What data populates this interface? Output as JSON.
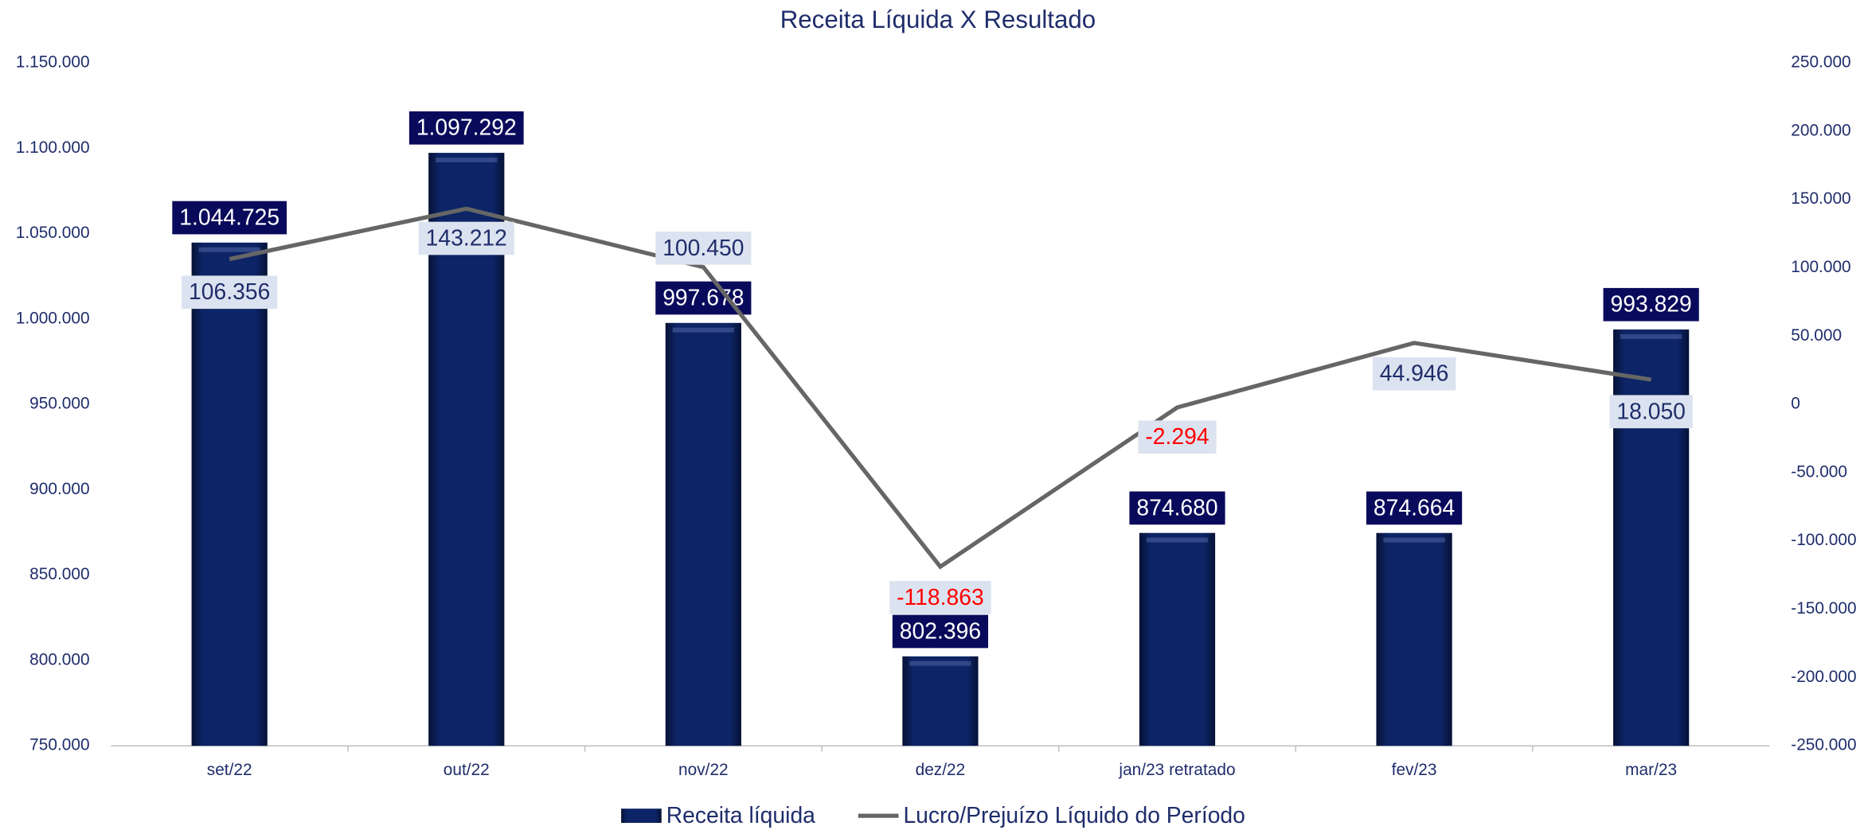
{
  "chart_data": {
    "type": "bar",
    "title": "Receita Líquida X Resultado",
    "categories": [
      "set/22",
      "out/22",
      "nov/22",
      "dez/22",
      "jan/23 retratado",
      "fev/23",
      "mar/23"
    ],
    "series": [
      {
        "name": "Receita líquida",
        "type": "bar",
        "color": "#0d2466",
        "values": [
          1044725,
          1097292,
          997678,
          802396,
          874680,
          874664,
          993829
        ],
        "value_labels": [
          "1.044.725",
          "1.097.292",
          "997.678",
          "802.396",
          "874.680",
          "874.664",
          "993.829"
        ]
      },
      {
        "name": "Lucro/Prejuízo Líquido do Período",
        "type": "line",
        "axis": "y2",
        "color": "#666666",
        "values": [
          106356,
          143212,
          100450,
          -118863,
          -2294,
          44946,
          18050
        ],
        "value_labels": [
          "106.356",
          "143.212",
          "100.450",
          "-118.863",
          "-2.294",
          "44.946",
          "18.050"
        ]
      }
    ],
    "ylim": [
      750000,
      1150000
    ],
    "yticks": [
      {
        "value": 750000,
        "label": "750.000"
      },
      {
        "value": 800000,
        "label": "800.000"
      },
      {
        "value": 850000,
        "label": "850.000"
      },
      {
        "value": 900000,
        "label": "900.000"
      },
      {
        "value": 950000,
        "label": "950.000"
      },
      {
        "value": 1000000,
        "label": "1.000.000"
      },
      {
        "value": 1050000,
        "label": "1.050.000"
      },
      {
        "value": 1100000,
        "label": "1.100.000"
      },
      {
        "value": 1150000,
        "label": "1.150.000"
      }
    ],
    "y2lim": [
      -250000,
      250000
    ],
    "y2ticks": [
      {
        "value": -250000,
        "label": "-250.000"
      },
      {
        "value": -200000,
        "label": "-200.000"
      },
      {
        "value": -150000,
        "label": "-150.000"
      },
      {
        "value": -100000,
        "label": "-100.000"
      },
      {
        "value": -50000,
        "label": "-50.000"
      },
      0,
      {
        "value": 50000,
        "label": "50.000"
      },
      {
        "value": 100000,
        "label": "100.000"
      },
      {
        "value": 150000,
        "label": "150.000"
      },
      {
        "value": 200000,
        "label": "200.000"
      },
      {
        "value": 250000,
        "label": "250.000"
      }
    ],
    "legend": "bottom",
    "negative_color": "#ff0000"
  }
}
